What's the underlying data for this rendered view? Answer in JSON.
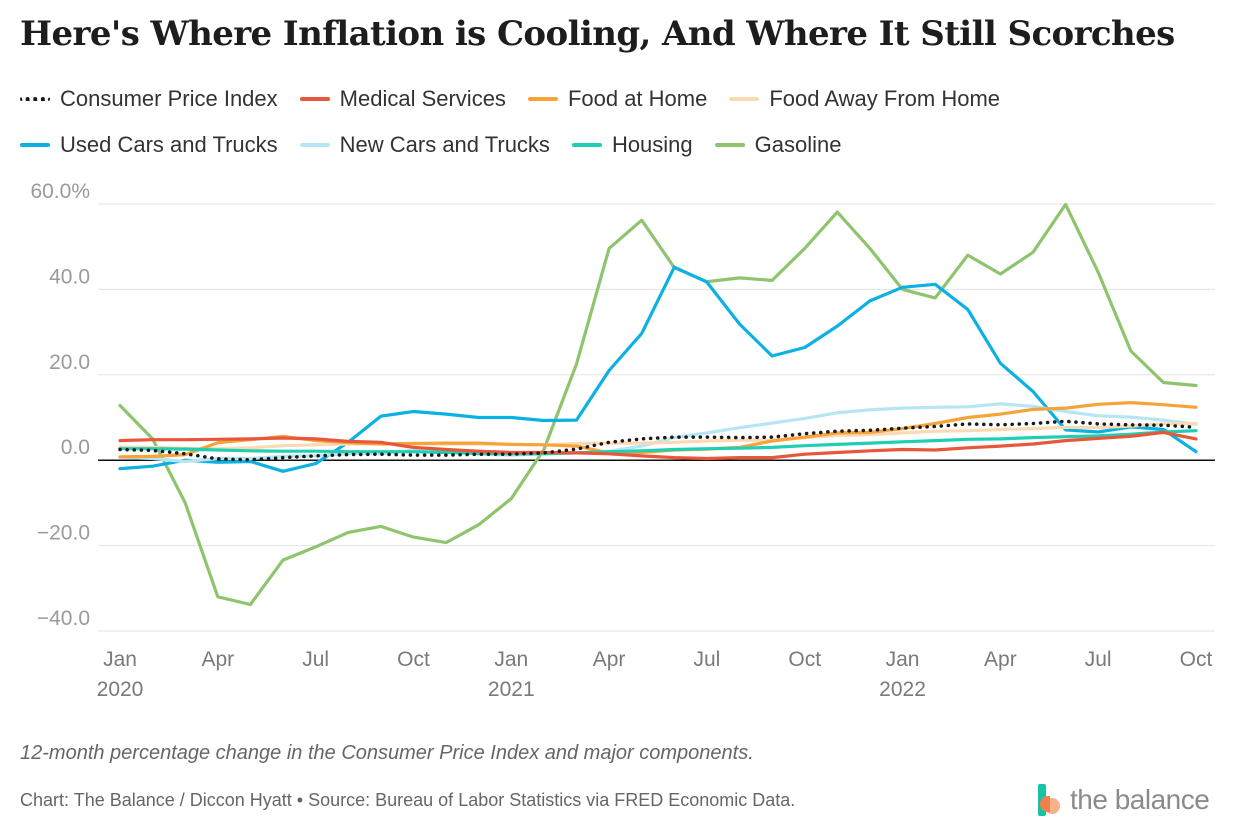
{
  "title": "Here's Where Inflation is Cooling, And Where It Still Scorches",
  "caption": "12-month percentage change in the Consumer Price Index and major components.",
  "credit": "Chart: The Balance / Diccon Hyatt • Source: Bureau of Labor Statistics via FRED Economic Data.",
  "brand": "the balance",
  "legend": [
    {
      "label": "Consumer Price Index",
      "color": "#1a1a1a",
      "style": "dotted"
    },
    {
      "label": "Medical Services",
      "color": "#e8573a",
      "style": "solid"
    },
    {
      "label": "Food at Home",
      "color": "#f6a33a",
      "style": "solid"
    },
    {
      "label": "Food Away From Home",
      "color": "#fbd9b3",
      "style": "solid"
    },
    {
      "label": "Used Cars and Trucks",
      "color": "#0cb1e3",
      "style": "solid"
    },
    {
      "label": "New Cars and Trucks",
      "color": "#b6e5f4",
      "style": "solid"
    },
    {
      "label": "Housing",
      "color": "#1fcfb3",
      "style": "solid"
    },
    {
      "label": "Gasoline",
      "color": "#8fc46e",
      "style": "solid"
    }
  ],
  "chart_data": {
    "type": "line",
    "x": [
      "2020-01",
      "2020-02",
      "2020-03",
      "2020-04",
      "2020-05",
      "2020-06",
      "2020-07",
      "2020-08",
      "2020-09",
      "2020-10",
      "2020-11",
      "2020-12",
      "2021-01",
      "2021-02",
      "2021-03",
      "2021-04",
      "2021-05",
      "2021-06",
      "2021-07",
      "2021-08",
      "2021-09",
      "2021-10",
      "2021-11",
      "2021-12",
      "2022-01",
      "2022-02",
      "2022-03",
      "2022-04",
      "2022-05",
      "2022-06",
      "2022-07",
      "2022-08",
      "2022-09",
      "2022-10"
    ],
    "x_tick_labels": [
      {
        "month": "Jan",
        "year": "2020",
        "index": 0
      },
      {
        "month": "Apr",
        "year": "",
        "index": 3
      },
      {
        "month": "Jul",
        "year": "",
        "index": 6
      },
      {
        "month": "Oct",
        "year": "",
        "index": 9
      },
      {
        "month": "Jan",
        "year": "2021",
        "index": 12
      },
      {
        "month": "Apr",
        "year": "",
        "index": 15
      },
      {
        "month": "Jul",
        "year": "",
        "index": 18
      },
      {
        "month": "Oct",
        "year": "",
        "index": 21
      },
      {
        "month": "Jan",
        "year": "2022",
        "index": 24
      },
      {
        "month": "Apr",
        "year": "",
        "index": 27
      },
      {
        "month": "Jul",
        "year": "",
        "index": 30
      },
      {
        "month": "Oct",
        "year": "",
        "index": 33
      }
    ],
    "y_ticks": [
      {
        "value": 60,
        "label": "60.0%"
      },
      {
        "value": 40,
        "label": "40.0"
      },
      {
        "value": 20,
        "label": "20.0"
      },
      {
        "value": 0,
        "label": "0.0"
      },
      {
        "value": -20,
        "label": "−20.0"
      },
      {
        "value": -40,
        "label": "−40.0"
      }
    ],
    "ylim": [
      -40,
      60
    ],
    "grid": true,
    "series": [
      {
        "name": "Gasoline",
        "color": "#8fc46e",
        "style": "solid",
        "values": [
          12.8,
          5.0,
          -10.0,
          -32.0,
          -33.8,
          -23.4,
          -20.3,
          -16.9,
          -15.5,
          -18.0,
          -19.3,
          -15.1,
          -9.0,
          2.5,
          22.5,
          49.6,
          56.2,
          45.1,
          41.8,
          42.7,
          42.1,
          49.6,
          58.1,
          49.6,
          40.0,
          38.0,
          48.0,
          43.6,
          48.7,
          59.9,
          44.0,
          25.6,
          18.2,
          17.5
        ]
      },
      {
        "name": "Used Cars and Trucks",
        "color": "#0cb1e3",
        "style": "solid",
        "values": [
          -2.0,
          -1.4,
          0.0,
          -0.5,
          -0.3,
          -2.6,
          -0.8,
          4.2,
          10.3,
          11.4,
          10.8,
          10.0,
          10.0,
          9.3,
          9.4,
          21.0,
          29.7,
          45.2,
          41.7,
          31.9,
          24.4,
          26.4,
          31.4,
          37.3,
          40.5,
          41.2,
          35.3,
          22.7,
          16.1,
          7.1,
          6.6,
          7.8,
          7.2,
          2.0
        ]
      },
      {
        "name": "New Cars and Trucks",
        "color": "#b6e5f4",
        "style": "solid",
        "values": [
          0.7,
          0.4,
          -0.3,
          0.4,
          0.4,
          0.9,
          1.0,
          1.6,
          1.5,
          2.3,
          2.1,
          1.4,
          1.2,
          1.5,
          1.7,
          2.1,
          3.3,
          5.3,
          6.4,
          7.6,
          8.7,
          9.8,
          11.1,
          11.8,
          12.2,
          12.4,
          12.5,
          13.2,
          12.6,
          11.4,
          10.4,
          10.1,
          9.4,
          8.4
        ]
      },
      {
        "name": "Food Away From Home",
        "color": "#fbd9b3",
        "style": "solid",
        "values": [
          3.1,
          3.0,
          2.8,
          2.7,
          2.9,
          3.4,
          3.6,
          3.8,
          3.8,
          3.9,
          3.8,
          3.8,
          3.7,
          3.6,
          3.9,
          4.0,
          4.0,
          4.2,
          4.5,
          4.7,
          4.7,
          5.3,
          5.8,
          6.0,
          6.4,
          6.8,
          6.9,
          7.2,
          7.4,
          7.7,
          7.6,
          8.0,
          8.5,
          8.6
        ]
      },
      {
        "name": "Food at Home",
        "color": "#f6a33a",
        "style": "solid",
        "values": [
          0.8,
          0.9,
          1.3,
          4.1,
          4.8,
          5.6,
          4.6,
          4.1,
          3.8,
          3.9,
          4.0,
          4.0,
          3.7,
          3.6,
          3.3,
          1.7,
          1.8,
          2.4,
          2.6,
          3.0,
          4.5,
          5.4,
          6.4,
          6.5,
          7.4,
          8.6,
          10.0,
          10.8,
          11.9,
          12.2,
          13.1,
          13.5,
          13.0,
          12.4
        ]
      },
      {
        "name": "Housing",
        "color": "#1fcfb3",
        "style": "solid",
        "values": [
          2.7,
          2.7,
          2.6,
          2.4,
          2.2,
          2.1,
          2.1,
          2.0,
          2.0,
          2.0,
          1.8,
          1.6,
          1.5,
          1.5,
          1.7,
          2.0,
          2.2,
          2.5,
          2.7,
          2.8,
          3.0,
          3.4,
          3.7,
          4.0,
          4.3,
          4.6,
          4.9,
          5.0,
          5.3,
          5.5,
          5.7,
          6.1,
          6.6,
          6.9
        ]
      },
      {
        "name": "Medical Services",
        "color": "#e8573a",
        "style": "solid",
        "values": [
          4.6,
          4.8,
          4.8,
          4.9,
          5.0,
          5.2,
          5.0,
          4.4,
          4.2,
          3.0,
          2.5,
          2.1,
          1.8,
          1.8,
          1.7,
          1.5,
          1.0,
          0.6,
          0.4,
          0.6,
          0.6,
          1.4,
          1.8,
          2.2,
          2.5,
          2.4,
          2.9,
          3.3,
          3.8,
          4.6,
          5.1,
          5.6,
          6.5,
          5.0
        ]
      },
      {
        "name": "Consumer Price Index",
        "color": "#1a1a1a",
        "style": "dotted",
        "values": [
          2.5,
          2.3,
          1.5,
          0.3,
          0.1,
          0.6,
          1.0,
          1.3,
          1.4,
          1.2,
          1.2,
          1.4,
          1.4,
          1.7,
          2.6,
          4.2,
          5.0,
          5.4,
          5.4,
          5.3,
          5.4,
          6.2,
          6.8,
          7.0,
          7.5,
          7.9,
          8.5,
          8.3,
          8.6,
          9.1,
          8.5,
          8.3,
          8.2,
          7.7
        ]
      }
    ]
  }
}
